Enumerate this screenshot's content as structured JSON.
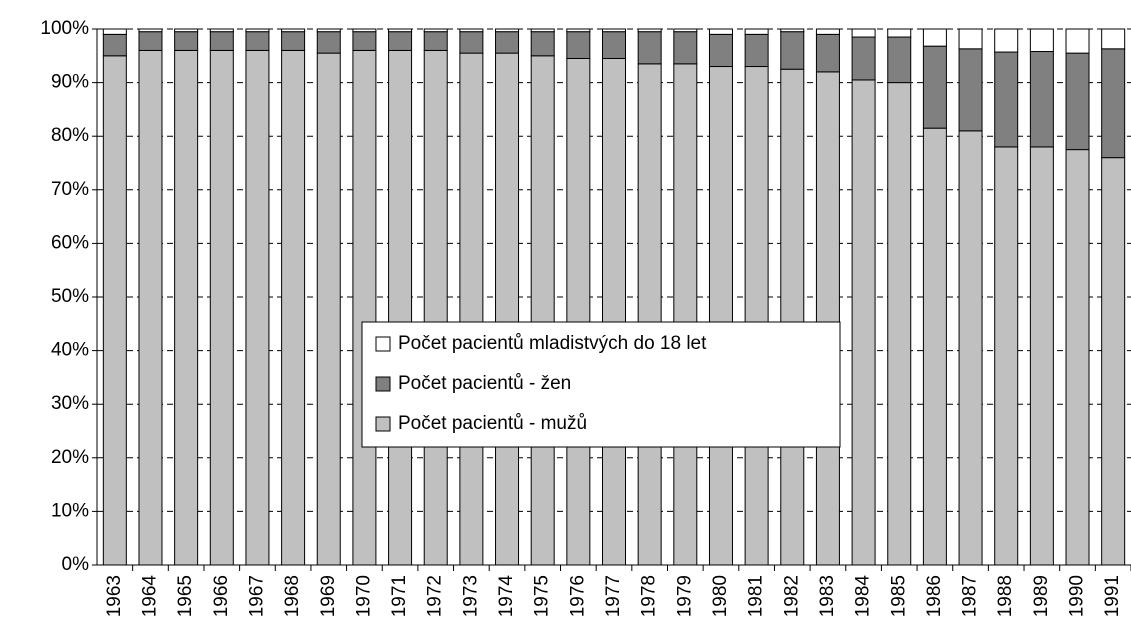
{
  "chart_data": {
    "type": "stacked_bar",
    "categories": [
      "1963",
      "1964",
      "1965",
      "1966",
      "1967",
      "1968",
      "1969",
      "1970",
      "1971",
      "1972",
      "1973",
      "1974",
      "1975",
      "1976",
      "1977",
      "1978",
      "1979",
      "1980",
      "1981",
      "1982",
      "1983",
      "1984",
      "1985",
      "1986",
      "1987",
      "1988",
      "1989",
      "1990",
      "1991"
    ],
    "series": [
      {
        "name": "Počet pacientů - mužů",
        "color": "#c0c0c0",
        "values": [
          95,
          96,
          96,
          96,
          96,
          96,
          95.5,
          96,
          96,
          96,
          95.5,
          95.5,
          95,
          94.5,
          94.5,
          93.5,
          93.5,
          93,
          93,
          92.5,
          92,
          90.5,
          90,
          81.5,
          81,
          78,
          78,
          77.5,
          76
        ]
      },
      {
        "name": "Počet pacientů - žen",
        "color": "#808080",
        "values": [
          4,
          3.5,
          3.5,
          3.5,
          3.5,
          3.5,
          4,
          3.5,
          3.5,
          3.5,
          4,
          4,
          4.5,
          5,
          5,
          6,
          6,
          6,
          6,
          7,
          7,
          8,
          8.5,
          15.3,
          15.3,
          17.7,
          17.8,
          18,
          20.3
        ]
      },
      {
        "name": "Počet pacientů mladistvých do 18 let",
        "color": "#ffffff",
        "values": [
          1,
          0.5,
          0.5,
          0.5,
          0.5,
          0.5,
          0.5,
          0.5,
          0.5,
          0.5,
          0.5,
          0.5,
          0.5,
          0.5,
          0.5,
          0.5,
          0.5,
          1,
          1,
          0.5,
          1,
          1.5,
          1.5,
          3.2,
          3.7,
          4.3,
          4.2,
          4.5,
          3.7
        ]
      }
    ],
    "ylim": [
      0,
      100
    ],
    "yticks": [
      {
        "value": 0,
        "label": "0%"
      },
      {
        "value": 10,
        "label": "10%"
      },
      {
        "value": 20,
        "label": "20%"
      },
      {
        "value": 30,
        "label": "30%"
      },
      {
        "value": 40,
        "label": "40%"
      },
      {
        "value": 50,
        "label": "50%"
      },
      {
        "value": 60,
        "label": "60%"
      },
      {
        "value": 70,
        "label": "70%"
      },
      {
        "value": 80,
        "label": "80%"
      },
      {
        "value": 90,
        "label": "90%"
      },
      {
        "value": 100,
        "label": "100%"
      }
    ],
    "grid": true,
    "legend": "center"
  }
}
